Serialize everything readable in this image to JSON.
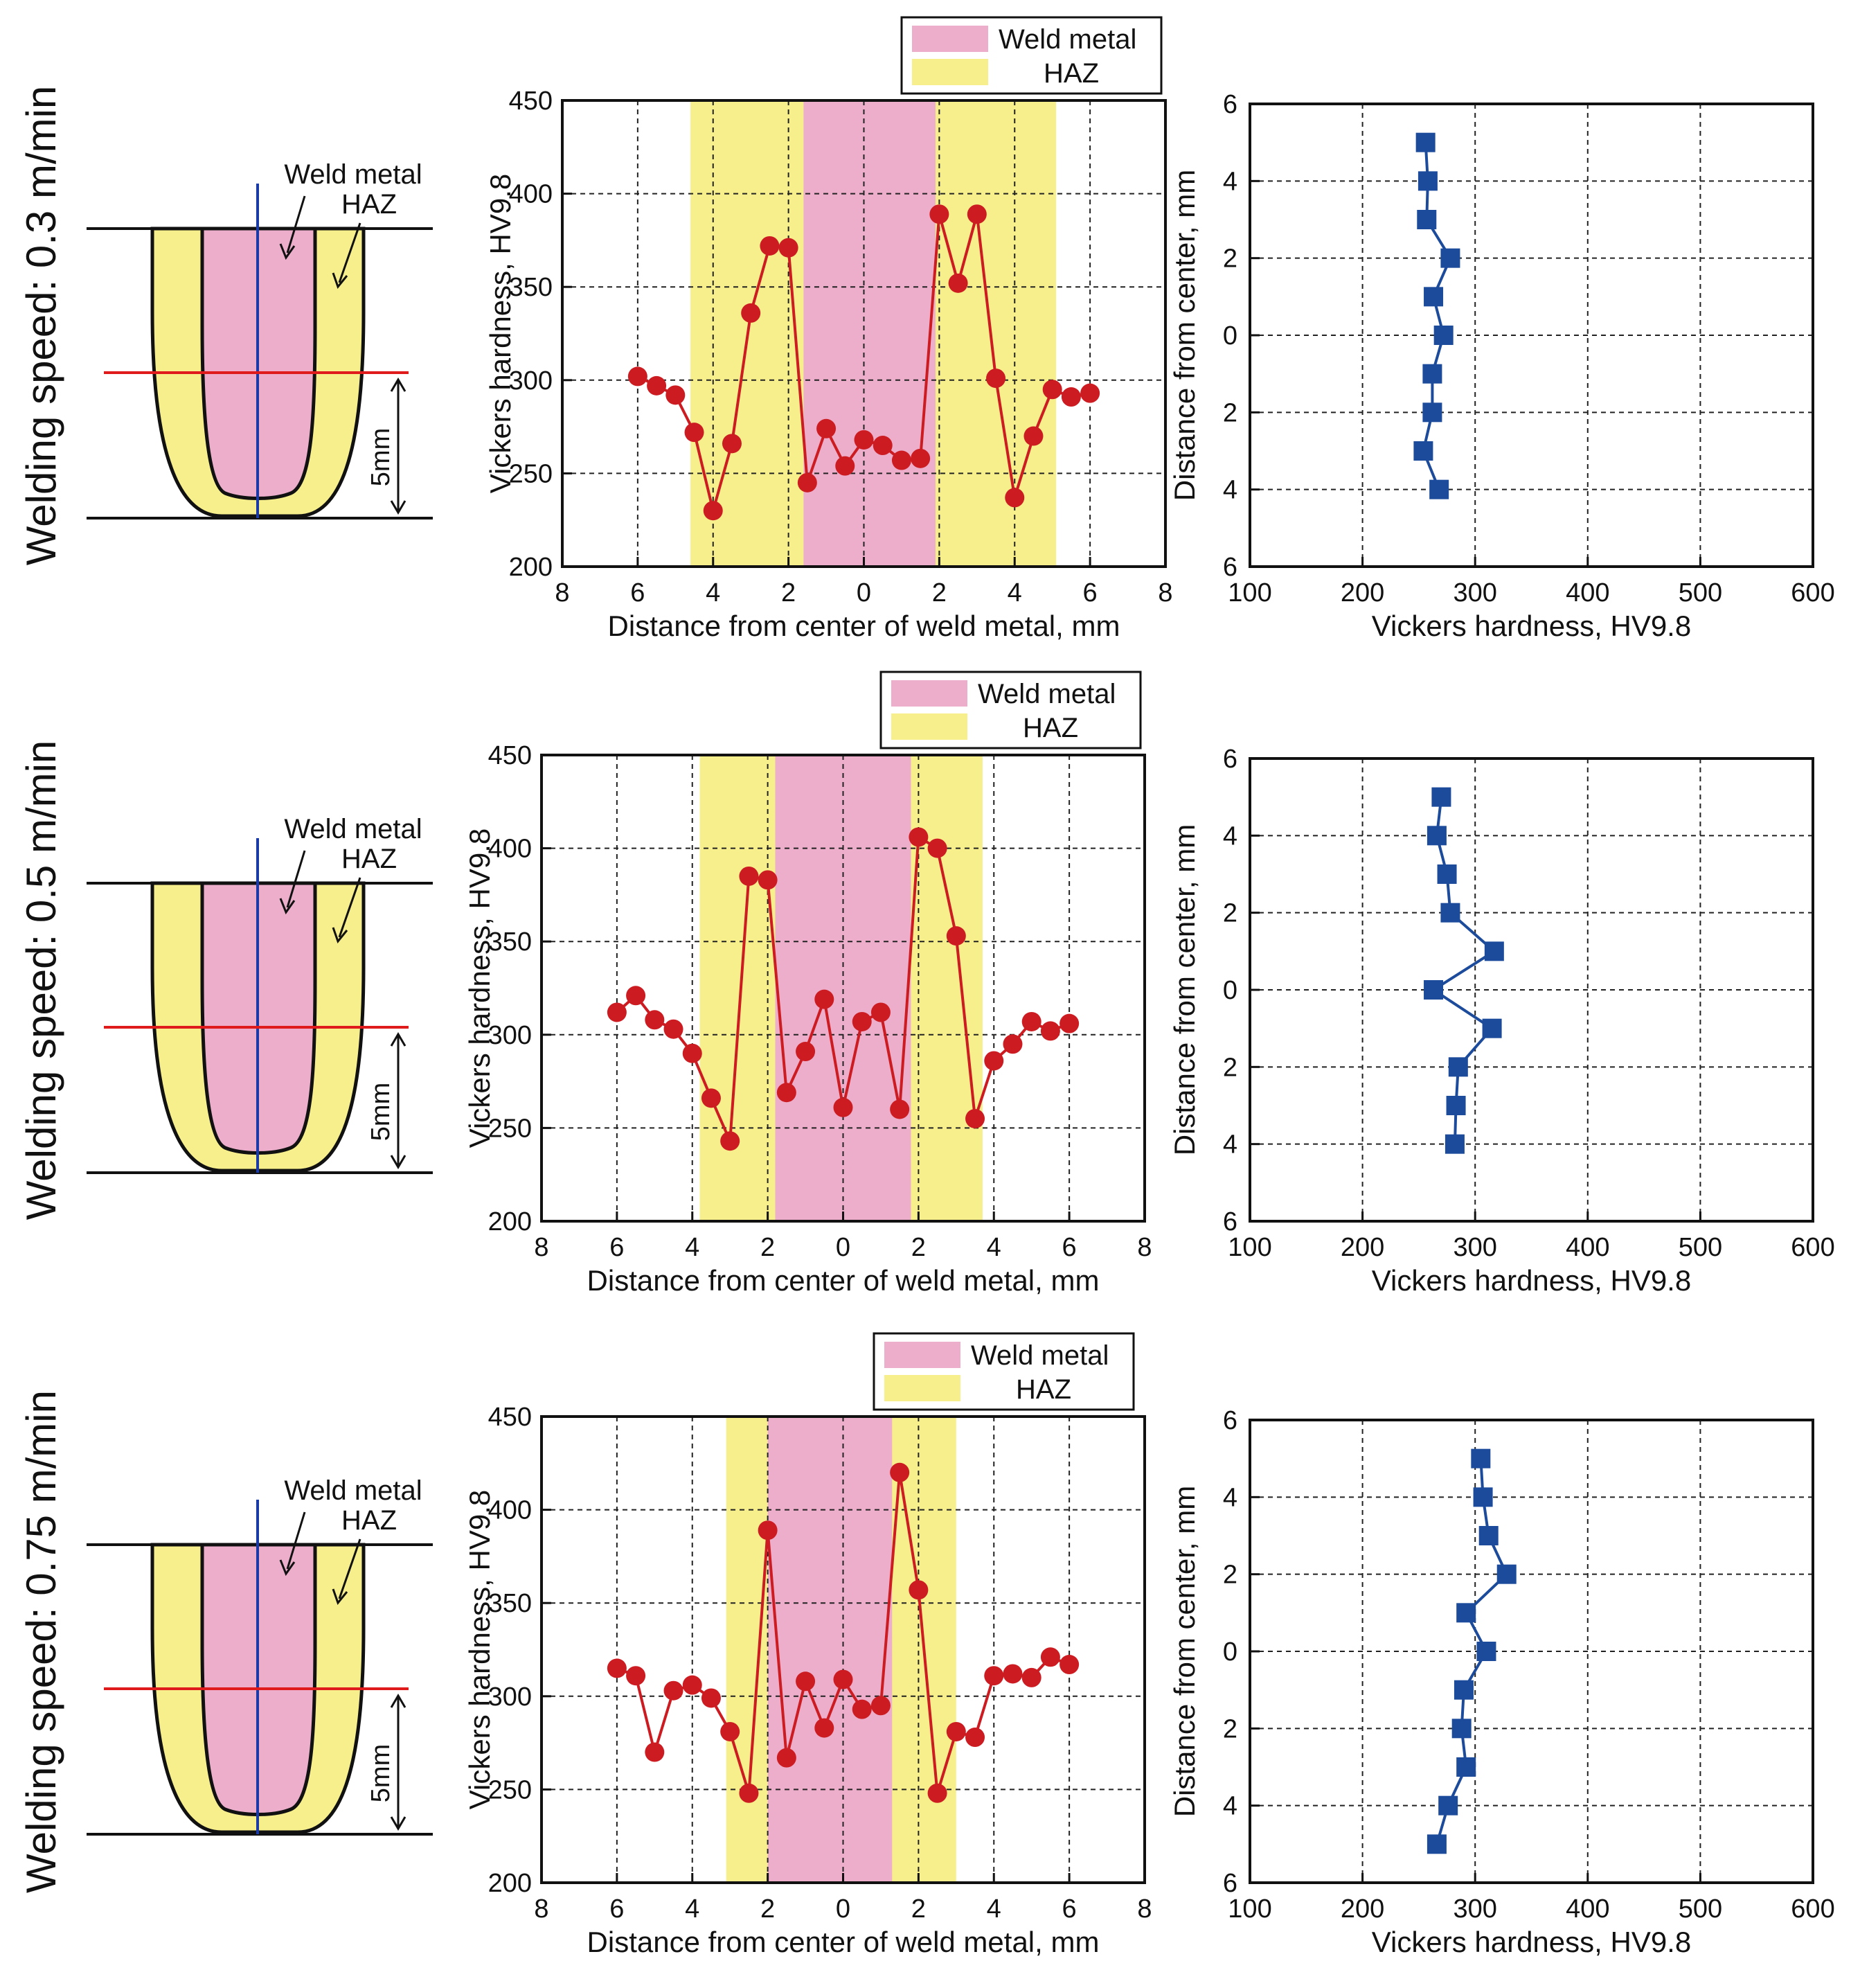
{
  "colors": {
    "weld": "#ecaecb",
    "haz": "#f6ef8c",
    "line_red": "#cc1c22",
    "line_blue": "#1d4b9b",
    "cut_line": "#e01b1b",
    "center_line": "#1a3aa8"
  },
  "icons": {
    "schematic": "weld-cross-section-icon",
    "marker_red": "circle-marker-icon",
    "marker_blue": "square-marker-icon"
  },
  "rows": [
    {
      "label": "Welding speed: 0.3 m/min",
      "schematic": {
        "weld_label": "Weld metal",
        "haz_label": "HAZ",
        "depth_label": "5mm"
      },
      "legend": {
        "weld": "Weld metal",
        "haz": "HAZ"
      },
      "horizontal": {
        "type": "line",
        "xlabel": "Distance from center of weld metal, mm",
        "ylabel": "Vickers hardness, HV9.8",
        "xlim": [
          -8,
          8
        ],
        "ylim": [
          200,
          450
        ],
        "xticks": [
          -8,
          -6,
          -4,
          -2,
          0,
          2,
          4,
          6,
          8
        ],
        "xtick_labels": [
          "8",
          "6",
          "4",
          "2",
          "0",
          "2",
          "4",
          "6",
          "8"
        ],
        "yticks": [
          200,
          250,
          300,
          350,
          400,
          450
        ],
        "haz_range": [
          -4.6,
          5.1
        ],
        "weld_range": [
          -1.6,
          1.9
        ],
        "x": [
          -6,
          -5.5,
          -5,
          -4.5,
          -4,
          -3.5,
          -3,
          -2.5,
          -2,
          -1.5,
          -1,
          -0.5,
          0,
          0.5,
          1,
          1.5,
          2,
          2.5,
          3,
          3.5,
          4,
          4.5,
          5,
          5.5,
          6
        ],
        "y": [
          302,
          297,
          292,
          272,
          230,
          266,
          336,
          372,
          371,
          245,
          274,
          254,
          268,
          265,
          257,
          258,
          389,
          352,
          389,
          301,
          237,
          270,
          295,
          291,
          293
        ]
      },
      "vertical": {
        "type": "line",
        "xlabel": "Vickers hardness, HV9.8",
        "ylabel": "Distance from center, mm",
        "xlim": [
          100,
          600
        ],
        "ylim": [
          -6,
          6
        ],
        "xticks": [
          100,
          200,
          300,
          400,
          500,
          600
        ],
        "yticks": [
          6,
          4,
          2,
          0,
          -2,
          -4,
          -6
        ],
        "ytick_labels": [
          "6",
          "4",
          "2",
          "0",
          "2",
          "4",
          "6"
        ],
        "depth": [
          5,
          4,
          3,
          2,
          1,
          0,
          -1,
          -2,
          -3,
          -4
        ],
        "hardness": [
          256,
          258,
          257,
          278,
          263,
          272,
          262,
          262,
          254,
          268
        ]
      }
    },
    {
      "label": "Welding speed: 0.5 m/min",
      "schematic": {
        "weld_label": "Weld metal",
        "haz_label": "HAZ",
        "depth_label": "5mm"
      },
      "legend": {
        "weld": "Weld metal",
        "haz": "HAZ"
      },
      "horizontal": {
        "type": "line",
        "xlabel": "Distance from center of weld metal, mm",
        "ylabel": "Vickers hardness, HV9.8",
        "xlim": [
          -8,
          8
        ],
        "ylim": [
          200,
          450
        ],
        "xticks": [
          -8,
          -6,
          -4,
          -2,
          0,
          2,
          4,
          6,
          8
        ],
        "xtick_labels": [
          "8",
          "6",
          "4",
          "2",
          "0",
          "2",
          "4",
          "6",
          "8"
        ],
        "yticks": [
          200,
          250,
          300,
          350,
          400,
          450
        ],
        "haz_range": [
          -3.8,
          3.7
        ],
        "weld_range": [
          -1.8,
          1.8
        ],
        "x": [
          -6,
          -5.5,
          -5,
          -4.5,
          -4,
          -3.5,
          -3,
          -2.5,
          -2,
          -1.5,
          -1,
          -0.5,
          0,
          0.5,
          1,
          1.5,
          2,
          2.5,
          3,
          3.5,
          4,
          4.5,
          5,
          5.5,
          6
        ],
        "y": [
          312,
          321,
          308,
          303,
          290,
          266,
          243,
          385,
          383,
          269,
          291,
          319,
          261,
          307,
          312,
          260,
          406,
          400,
          353,
          255,
          286,
          295,
          307,
          302,
          306
        ]
      },
      "vertical": {
        "type": "line",
        "xlabel": "Vickers hardness, HV9.8",
        "ylabel": "Distance from center, mm",
        "xlim": [
          100,
          600
        ],
        "ylim": [
          -6,
          6
        ],
        "xticks": [
          100,
          200,
          300,
          400,
          500,
          600
        ],
        "yticks": [
          6,
          4,
          2,
          0,
          -2,
          -4,
          -6
        ],
        "ytick_labels": [
          "6",
          "4",
          "2",
          "0",
          "2",
          "4",
          "6"
        ],
        "depth": [
          5,
          4,
          3,
          2,
          1,
          0,
          -1,
          -2,
          -3,
          -4
        ],
        "hardness": [
          270,
          266,
          275,
          278,
          317,
          263,
          315,
          285,
          283,
          282
        ]
      }
    },
    {
      "label": "Welding speed: 0.75 m/min",
      "schematic": {
        "weld_label": "Weld metal",
        "haz_label": "HAZ",
        "depth_label": "5mm"
      },
      "legend": {
        "weld": "Weld metal",
        "haz": "HAZ"
      },
      "horizontal": {
        "type": "line",
        "xlabel": "Distance from center of weld metal, mm",
        "ylabel": "Vickers hardness, HV9.8",
        "xlim": [
          -8,
          8
        ],
        "ylim": [
          200,
          450
        ],
        "xticks": [
          -8,
          -6,
          -4,
          -2,
          0,
          2,
          4,
          6,
          8
        ],
        "xtick_labels": [
          "8",
          "6",
          "4",
          "2",
          "0",
          "2",
          "4",
          "6",
          "8"
        ],
        "yticks": [
          200,
          250,
          300,
          350,
          400,
          450
        ],
        "haz_range": [
          -3.1,
          3.0
        ],
        "weld_range": [
          -2.0,
          1.3
        ],
        "x": [
          -6,
          -5.5,
          -5,
          -4.5,
          -4,
          -3.5,
          -3,
          -2.5,
          -2,
          -1.5,
          -1,
          -0.5,
          0,
          0.5,
          1,
          1.5,
          2,
          2.5,
          3,
          3.5,
          4,
          4.5,
          5,
          5.5,
          6
        ],
        "y": [
          315,
          311,
          270,
          303,
          306,
          299,
          281,
          248,
          389,
          267,
          308,
          283,
          309,
          293,
          295,
          420,
          357,
          248,
          281,
          278,
          311,
          312,
          310,
          321,
          317
        ]
      },
      "vertical": {
        "type": "line",
        "xlabel": "Vickers hardness, HV9.8",
        "ylabel": "Distance from center, mm",
        "xlim": [
          100,
          600
        ],
        "ylim": [
          -6,
          6
        ],
        "xticks": [
          100,
          200,
          300,
          400,
          500,
          600
        ],
        "yticks": [
          6,
          4,
          2,
          0,
          -2,
          -4,
          -6
        ],
        "ytick_labels": [
          "6",
          "4",
          "2",
          "0",
          "2",
          "4",
          "6"
        ],
        "depth": [
          5,
          4,
          3,
          2,
          1,
          0,
          -1,
          -2,
          -3,
          -4,
          -5
        ],
        "hardness": [
          305,
          307,
          312,
          328,
          292,
          310,
          290,
          288,
          292,
          276,
          266
        ]
      }
    }
  ]
}
